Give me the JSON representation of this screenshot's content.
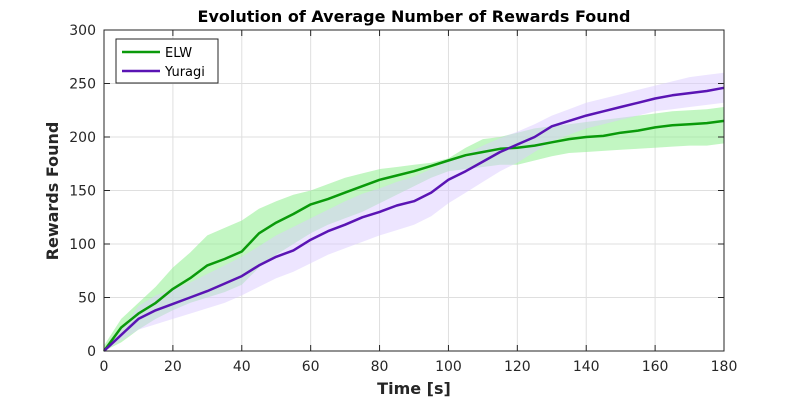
{
  "chart_data": {
    "type": "line",
    "title": "Evolution of Average Number of Rewards Found",
    "xlabel": "Time [s]",
    "ylabel": "Rewards Found",
    "xlim": [
      0,
      180
    ],
    "ylim": [
      0,
      300
    ],
    "xticks": [
      0,
      20,
      40,
      60,
      80,
      100,
      120,
      140,
      160,
      180
    ],
    "yticks": [
      0,
      50,
      100,
      150,
      200,
      250,
      300
    ],
    "grid": true,
    "legend_position": "top-left",
    "series": [
      {
        "name": "ELW",
        "color": "#0a9a0a",
        "band_color": "#90ee90",
        "x": [
          0,
          5,
          10,
          15,
          20,
          25,
          30,
          35,
          40,
          45,
          50,
          55,
          60,
          65,
          70,
          75,
          80,
          85,
          90,
          95,
          100,
          105,
          110,
          115,
          120,
          125,
          130,
          135,
          140,
          145,
          150,
          155,
          160,
          165,
          170,
          175,
          180
        ],
        "y": [
          0,
          22,
          35,
          45,
          58,
          68,
          80,
          86,
          93,
          110,
          120,
          128,
          137,
          142,
          148,
          154,
          160,
          164,
          168,
          173,
          178,
          183,
          186,
          189,
          190,
          192,
          195,
          198,
          200,
          201,
          204,
          206,
          209,
          211,
          212,
          213,
          215
        ],
        "upper": [
          5,
          30,
          45,
          60,
          78,
          92,
          108,
          115,
          122,
          133,
          140,
          146,
          150,
          156,
          162,
          166,
          170,
          172,
          174,
          176,
          180,
          190,
          198,
          200,
          204,
          208,
          210,
          212,
          214,
          216,
          218,
          220,
          222,
          224,
          225,
          226,
          228
        ],
        "lower": [
          0,
          8,
          20,
          30,
          38,
          45,
          50,
          55,
          62,
          78,
          90,
          100,
          110,
          118,
          124,
          130,
          138,
          146,
          154,
          162,
          168,
          170,
          172,
          174,
          174,
          178,
          182,
          185,
          186,
          187,
          188,
          189,
          190,
          191,
          192,
          192,
          194
        ]
      },
      {
        "name": "Yuragi",
        "color": "#5a14b4",
        "band_color": "#dccbff",
        "x": [
          0,
          5,
          10,
          15,
          20,
          25,
          30,
          35,
          40,
          45,
          50,
          55,
          60,
          65,
          70,
          75,
          80,
          85,
          90,
          95,
          100,
          105,
          110,
          115,
          120,
          125,
          130,
          135,
          140,
          145,
          150,
          155,
          160,
          165,
          170,
          175,
          180
        ],
        "y": [
          0,
          15,
          30,
          38,
          44,
          50,
          56,
          63,
          70,
          80,
          88,
          94,
          104,
          112,
          118,
          125,
          130,
          136,
          140,
          148,
          160,
          168,
          177,
          186,
          193,
          200,
          210,
          215,
          220,
          224,
          228,
          232,
          236,
          239,
          241,
          243,
          246
        ],
        "upper": [
          2,
          20,
          42,
          52,
          58,
          64,
          72,
          80,
          88,
          98,
          108,
          116,
          124,
          132,
          140,
          147,
          152,
          158,
          163,
          170,
          178,
          184,
          192,
          199,
          205,
          212,
          220,
          226,
          232,
          236,
          240,
          244,
          248,
          252,
          256,
          258,
          260
        ],
        "lower": [
          0,
          10,
          20,
          25,
          30,
          35,
          40,
          45,
          52,
          60,
          68,
          74,
          82,
          90,
          96,
          102,
          108,
          113,
          118,
          126,
          138,
          148,
          158,
          168,
          176,
          186,
          196,
          202,
          208,
          212,
          216,
          220,
          224,
          226,
          228,
          230,
          232
        ]
      }
    ]
  }
}
